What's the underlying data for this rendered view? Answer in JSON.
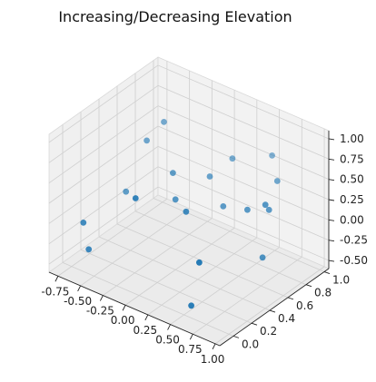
{
  "chart_data": {
    "type": "scatter",
    "title": "Increasing/Decreasing Elevation",
    "xlabel": "",
    "ylabel": "",
    "zlabel": "",
    "xlim": [
      -0.85,
      1.05
    ],
    "ylim": [
      -0.15,
      1.05
    ],
    "zlim": [
      -0.6,
      1.1
    ],
    "x_ticks": [
      "-0.75",
      "-0.50",
      "-0.25",
      "0.00",
      "0.25",
      "0.50",
      "0.75",
      "1.00"
    ],
    "y_ticks": [
      "0.0",
      "0.2",
      "0.4",
      "0.6",
      "0.8",
      "1.0"
    ],
    "z_ticks": [
      "-0.50",
      "-0.25",
      "0.00",
      "0.25",
      "0.50",
      "0.75",
      "1.00"
    ],
    "grid": true,
    "marker_color": "#1f77b4",
    "points": [
      {
        "x": -0.47,
        "y": 0.55,
        "z": 0.65
      },
      {
        "x": -0.35,
        "y": 0.62,
        "z": 0.88
      },
      {
        "x": -0.25,
        "y": 0.62,
        "z": 0.3
      },
      {
        "x": 0.18,
        "y": 0.85,
        "z": 0.5
      },
      {
        "x": -0.1,
        "y": 0.5,
        "z": 0.14
      },
      {
        "x": 0.52,
        "y": 0.95,
        "z": 0.62
      },
      {
        "x": -0.55,
        "y": 0.4,
        "z": 0.1
      },
      {
        "x": -0.22,
        "y": 0.18,
        "z": 0.35
      },
      {
        "x": 0.33,
        "y": 0.6,
        "z": 0.18
      },
      {
        "x": -0.7,
        "y": 0.08,
        "z": -0.1
      },
      {
        "x": 0.65,
        "y": 0.55,
        "z": 0.33
      },
      {
        "x": 0.84,
        "y": 0.6,
        "z": 0.38
      },
      {
        "x": 0.08,
        "y": 0.7,
        "z": 0.35
      },
      {
        "x": 0.75,
        "y": 0.78,
        "z": 0.55
      },
      {
        "x": 0.22,
        "y": 0.3,
        "z": 0.3
      },
      {
        "x": 0.92,
        "y": 0.45,
        "z": -0.05
      },
      {
        "x": 0.65,
        "y": 0.02,
        "z": 0.1
      },
      {
        "x": 0.9,
        "y": 0.5,
        "z": 0.55
      },
      {
        "x": -0.6,
        "y": 0.04,
        "z": -0.35
      },
      {
        "x": 0.5,
        "y": 0.08,
        "z": -0.55
      }
    ]
  }
}
